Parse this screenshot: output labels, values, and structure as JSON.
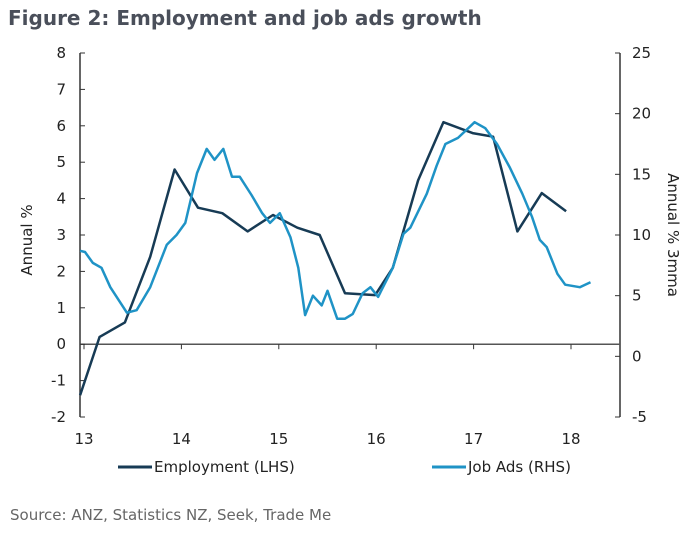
{
  "title": "Figure 2: Employment and job ads growth",
  "source": "Source: ANZ, Statistics NZ, Seek, Trade Me",
  "chart_data": {
    "type": "line",
    "title": "Figure 2: Employment and job ads growth",
    "xlabel": "",
    "ylabel": "Annual %",
    "y2label": "Annual % 3mma",
    "xlim": [
      12.96,
      18.3
    ],
    "ylim": [
      -2,
      8
    ],
    "y2lim": [
      -5,
      25
    ],
    "xticks": [
      "13",
      "14",
      "15",
      "16",
      "17",
      "18"
    ],
    "xtick_values": [
      13,
      14,
      15,
      16,
      17,
      18
    ],
    "yticks": [
      "8",
      "7",
      "6",
      "5",
      "4",
      "3",
      "2",
      "1",
      "0",
      "-1",
      "-2"
    ],
    "ytick_values": [
      8,
      7,
      6,
      5,
      4,
      3,
      2,
      1,
      0,
      -1,
      -2
    ],
    "y2ticks": [
      "25",
      "20",
      "15",
      "10",
      "5",
      "0",
      "-5"
    ],
    "y2tick_values": [
      25,
      20,
      15,
      10,
      5,
      0,
      -5
    ],
    "legend_position": "bottom",
    "grid": false,
    "series": [
      {
        "name": "Employment (LHS)",
        "axis": "left",
        "color": "#173b55",
        "x": [
          12.96,
          13.16,
          13.42,
          13.68,
          13.93,
          14.17,
          14.42,
          14.68,
          14.94,
          15.19,
          15.42,
          15.68,
          15.99,
          16.17,
          16.43,
          16.69,
          16.99,
          17.2,
          17.45,
          17.7,
          17.95
        ],
        "y": [
          -1.4,
          0.2,
          0.6,
          2.4,
          4.8,
          3.75,
          3.6,
          3.1,
          3.55,
          3.2,
          3.0,
          1.4,
          1.35,
          2.1,
          4.5,
          6.1,
          5.8,
          5.7,
          3.1,
          4.15,
          3.65
        ]
      },
      {
        "name": "Job Ads (RHS)",
        "axis": "right",
        "color": "#1f93c6",
        "x": [
          12.96,
          13.01,
          13.09,
          13.18,
          13.27,
          13.44,
          13.54,
          13.68,
          13.85,
          13.95,
          14.04,
          14.16,
          14.26,
          14.34,
          14.43,
          14.52,
          14.6,
          14.72,
          14.83,
          14.91,
          15.01,
          15.12,
          15.2,
          15.27,
          15.35,
          15.44,
          15.5,
          15.6,
          15.68,
          15.76,
          15.86,
          15.94,
          16.02,
          16.17,
          16.28,
          16.35,
          16.52,
          16.62,
          16.71,
          16.84,
          17.01,
          17.12,
          17.24,
          17.37,
          17.5,
          17.6,
          17.68,
          17.75,
          17.86,
          17.94,
          18.09,
          18.2
        ],
        "y": [
          8.7,
          8.6,
          7.7,
          7.3,
          5.7,
          3.6,
          3.8,
          5.7,
          9.2,
          10.0,
          11.0,
          15.1,
          17.1,
          16.2,
          17.1,
          14.8,
          14.8,
          13.3,
          11.8,
          11.0,
          11.8,
          9.8,
          7.3,
          3.4,
          5.0,
          4.2,
          5.4,
          3.1,
          3.1,
          3.5,
          5.2,
          5.7,
          4.9,
          7.3,
          10.1,
          10.6,
          13.4,
          15.7,
          17.5,
          18.0,
          19.3,
          18.8,
          17.5,
          15.6,
          13.4,
          11.5,
          9.6,
          9.0,
          6.8,
          5.9,
          5.7,
          6.1
        ]
      }
    ]
  }
}
